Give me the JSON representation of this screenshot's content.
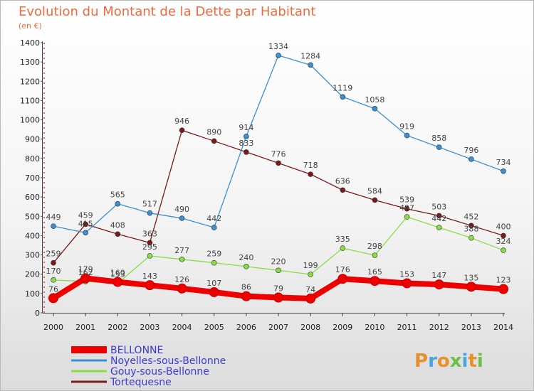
{
  "chart_data": {
    "type": "line",
    "title": "Evolution du Montant de la Dette par Habitant",
    "subtitle": "(en €)",
    "xlabel": "",
    "ylabel": "",
    "ylim": [
      0,
      1400
    ],
    "yticks": [
      "0",
      "100",
      "200",
      "300",
      "400",
      "500",
      "600",
      "700",
      "800",
      "900",
      "1000",
      "1100",
      "1200",
      "1300",
      "1400"
    ],
    "categories": [
      "2000",
      "2001",
      "2002",
      "2003",
      "2004",
      "2005",
      "2006",
      "2007",
      "2008",
      "2009",
      "2010",
      "2011",
      "2012",
      "2013",
      "2014"
    ],
    "series": [
      {
        "name": "BELLONNE",
        "color": "#ee0000",
        "values": [
          76,
          179,
          160,
          143,
          126,
          107,
          86,
          79,
          74,
          176,
          165,
          153,
          147,
          135,
          123
        ],
        "labels": [
          "76",
          "179",
          "160",
          "143",
          "126",
          "107",
          "86",
          "79",
          "74",
          "176",
          "165",
          "153",
          "147",
          "135",
          "123"
        ]
      },
      {
        "name": "Noyelles-sous-Bellonne",
        "color": "#3a8fd1",
        "values": [
          449,
          415,
          565,
          517,
          490,
          442,
          914,
          1334,
          1284,
          1119,
          1058,
          919,
          858,
          796,
          734
        ],
        "labels": [
          "449",
          "415",
          "565",
          "517",
          "490",
          "442",
          "914",
          "1334",
          "1284",
          "1119",
          "1058",
          "919",
          "858",
          "796",
          "734"
        ]
      },
      {
        "name": "Gouy-sous-Bellonne",
        "color": "#88dd44",
        "values": [
          170,
          162,
          153,
          295,
          277,
          259,
          240,
          220,
          199,
          335,
          298,
          497,
          442,
          388,
          324
        ],
        "labels": [
          "170",
          "162",
          "153",
          "295",
          "277",
          "259",
          "240",
          "220",
          "199",
          "335",
          "298",
          "497",
          "442",
          "388",
          "324"
        ]
      },
      {
        "name": "Tortequesne",
        "color": "#7a1a1a",
        "values": [
          259,
          459,
          408,
          363,
          946,
          890,
          833,
          776,
          718,
          636,
          584,
          539,
          503,
          452,
          400
        ],
        "labels": [
          "259",
          "459",
          "408",
          "363",
          "946",
          "890",
          "833",
          "776",
          "718",
          "636",
          "584",
          "539",
          "503",
          "452",
          "400"
        ]
      }
    ],
    "grid": false,
    "legend_position": "bottom-left"
  },
  "brand": {
    "text": "Proxiti"
  }
}
